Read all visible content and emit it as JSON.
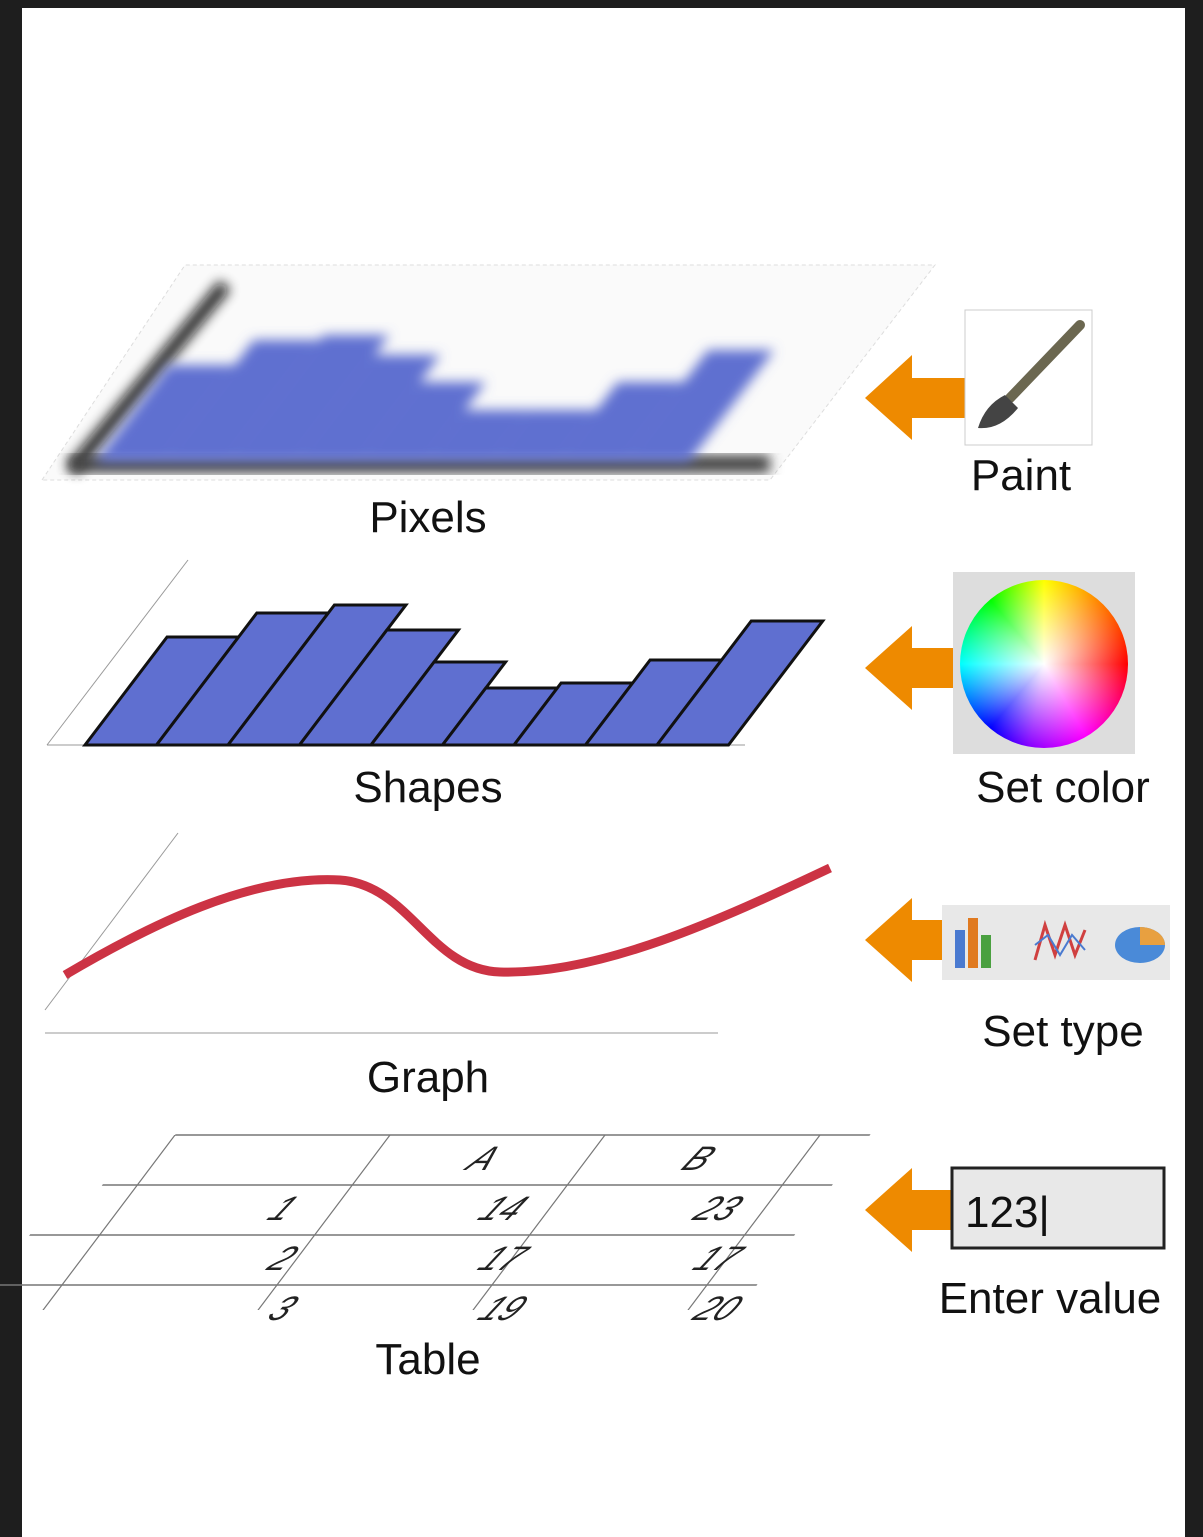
{
  "layers": [
    {
      "label": "Pixels"
    },
    {
      "label": "Shapes"
    },
    {
      "label": "Graph"
    },
    {
      "label": "Table"
    }
  ],
  "actions": [
    {
      "label": "Paint"
    },
    {
      "label": "Set color"
    },
    {
      "label": "Set type"
    },
    {
      "label": "Enter value"
    }
  ],
  "table": {
    "header": [
      "A",
      "B"
    ],
    "rows": [
      [
        "1",
        "14",
        "23"
      ],
      [
        "2",
        "17",
        "17"
      ],
      [
        "3",
        "19",
        "20"
      ]
    ]
  },
  "input": {
    "value": "123|"
  }
}
